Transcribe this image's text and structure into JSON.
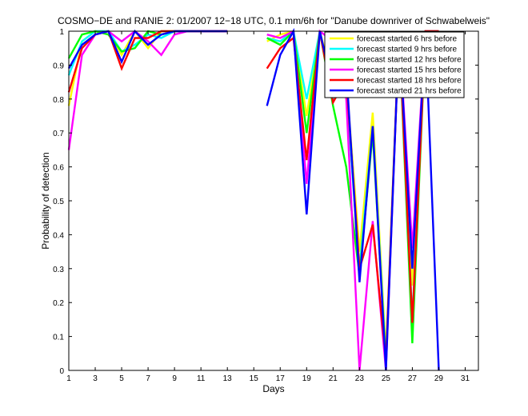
{
  "chart_data": {
    "type": "line",
    "title": "COSMO−DE and RANIE 2: 01/2007 12−18 UTC, 0.1 mm/6h for \"Danube downriver of Schwabelweis\"",
    "xlabel": "Days",
    "ylabel": "Probability of detection",
    "xlim": [
      1,
      32
    ],
    "ylim": [
      0,
      1
    ],
    "xticks": [
      1,
      3,
      5,
      7,
      9,
      11,
      13,
      15,
      17,
      19,
      21,
      23,
      25,
      27,
      29,
      31
    ],
    "yticks": [
      0,
      0.1,
      0.2,
      0.3,
      0.4,
      0.5,
      0.6,
      0.7,
      0.8,
      0.9,
      1
    ],
    "grid": false,
    "legend_position": "top-right",
    "series": [
      {
        "name": "forecast started 6 hrs before",
        "color": "#ffff00",
        "points": [
          [
            1,
            0.78
          ],
          [
            2,
            0.97
          ],
          [
            3,
            1.0
          ],
          [
            4,
            1.0
          ],
          [
            5,
            0.93
          ],
          [
            6,
            1.0
          ],
          [
            7,
            0.95
          ],
          [
            8,
            1.0
          ],
          [
            9,
            1.0
          ],
          [
            10,
            1.0
          ],
          [
            11,
            1.0
          ],
          [
            12,
            1.0
          ],
          [
            13,
            1.0
          ],
          null,
          [
            16,
            0.97
          ],
          [
            17,
            0.99
          ],
          [
            18,
            1.0
          ],
          [
            19,
            0.75
          ],
          [
            20,
            1.0
          ],
          [
            21,
            0.85
          ],
          [
            22,
            0.86
          ],
          [
            23,
            0.35
          ],
          [
            24,
            0.76
          ],
          [
            25,
            0.05
          ],
          [
            26,
            1.0
          ],
          [
            27,
            0.25
          ],
          [
            28,
            1.0
          ],
          [
            29,
            1.0
          ]
        ]
      },
      {
        "name": "forecast started 9 hrs before",
        "color": "#00ffff",
        "points": [
          [
            1,
            0.87
          ],
          [
            2,
            0.97
          ],
          [
            3,
            1.0
          ],
          [
            4,
            1.0
          ],
          [
            5,
            0.94
          ],
          [
            6,
            0.96
          ],
          [
            7,
            0.99
          ],
          [
            8,
            0.98
          ],
          [
            9,
            1.0
          ],
          [
            10,
            1.0
          ],
          [
            11,
            1.0
          ],
          [
            12,
            1.0
          ],
          [
            13,
            1.0
          ],
          null,
          [
            16,
            0.98
          ],
          [
            17,
            0.97
          ],
          [
            18,
            1.0
          ],
          [
            19,
            0.8
          ],
          [
            20,
            1.0
          ],
          [
            21,
            0.8
          ],
          [
            22,
            0.82
          ],
          [
            23,
            0.3
          ],
          [
            24,
            0.72
          ],
          [
            25,
            0.03
          ],
          [
            26,
            1.0
          ],
          [
            27,
            0.15
          ],
          [
            28,
            1.0
          ],
          [
            29,
            1.0
          ]
        ]
      },
      {
        "name": "forecast started 12 hrs before",
        "color": "#00ff00",
        "points": [
          [
            1,
            0.92
          ],
          [
            2,
            0.99
          ],
          [
            3,
            1.0
          ],
          [
            4,
            0.99
          ],
          [
            5,
            0.94
          ],
          [
            6,
            0.95
          ],
          [
            7,
            1.0
          ],
          [
            8,
            0.99
          ],
          [
            9,
            1.0
          ],
          [
            10,
            1.0
          ],
          [
            11,
            1.0
          ],
          [
            12,
            1.0
          ],
          [
            13,
            1.0
          ],
          null,
          [
            16,
            0.98
          ],
          [
            17,
            0.96
          ],
          [
            18,
            1.0
          ],
          [
            19,
            0.7
          ],
          [
            20,
            1.0
          ],
          [
            21,
            0.78
          ],
          [
            22,
            0.6
          ],
          [
            23,
            0.28
          ],
          [
            24,
            0.7
          ],
          [
            25,
            0.02
          ],
          [
            26,
            1.0
          ],
          [
            27,
            0.08
          ],
          [
            28,
            1.0
          ],
          [
            29,
            1.0
          ]
        ]
      },
      {
        "name": "forecast started 15 hrs before",
        "color": "#ff00ff",
        "points": [
          [
            1,
            0.65
          ],
          [
            2,
            0.93
          ],
          [
            3,
            0.99
          ],
          [
            4,
            1.0
          ],
          [
            5,
            0.97
          ],
          [
            6,
            1.0
          ],
          [
            7,
            0.97
          ],
          [
            8,
            0.93
          ],
          [
            9,
            0.99
          ],
          [
            10,
            1.0
          ],
          [
            11,
            1.0
          ],
          [
            12,
            1.0
          ],
          [
            13,
            1.0
          ],
          null,
          [
            16,
            0.99
          ],
          [
            17,
            0.98
          ],
          [
            18,
            1.0
          ],
          [
            19,
            0.55
          ],
          [
            20,
            1.0
          ],
          [
            21,
            0.97
          ],
          [
            22,
            0.8
          ],
          [
            23,
            0.0
          ],
          [
            24,
            0.44
          ],
          [
            25,
            0.0
          ],
          [
            26,
            1.0
          ],
          [
            27,
            0.36
          ],
          [
            28,
            1.0
          ],
          [
            29,
            1.0
          ]
        ]
      },
      {
        "name": "forecast started 18 hrs before",
        "color": "#ff0000",
        "points": [
          [
            1,
            0.82
          ],
          [
            2,
            0.95
          ],
          [
            3,
            0.99
          ],
          [
            4,
            1.0
          ],
          [
            5,
            0.89
          ],
          [
            6,
            0.98
          ],
          [
            7,
            0.98
          ],
          [
            8,
            1.0
          ],
          [
            9,
            1.0
          ],
          [
            10,
            1.0
          ],
          [
            11,
            1.0
          ],
          [
            12,
            1.0
          ],
          [
            13,
            1.0
          ],
          null,
          [
            16,
            0.89
          ],
          [
            17,
            0.95
          ],
          [
            18,
            0.98
          ],
          [
            19,
            0.62
          ],
          [
            20,
            1.0
          ],
          [
            21,
            0.79
          ],
          [
            22,
            0.86
          ],
          [
            23,
            0.3
          ],
          [
            24,
            0.43
          ],
          [
            25,
            0.03
          ],
          [
            26,
            1.0
          ],
          [
            27,
            0.14
          ],
          [
            28,
            1.0
          ],
          [
            29,
            1.0
          ]
        ]
      },
      {
        "name": "forecast started 21 hrs before",
        "color": "#0000ff",
        "points": [
          [
            1,
            0.89
          ],
          [
            2,
            0.96
          ],
          [
            3,
            0.99
          ],
          [
            4,
            1.0
          ],
          [
            5,
            0.91
          ],
          [
            6,
            1.0
          ],
          [
            7,
            0.96
          ],
          [
            8,
            0.99
          ],
          [
            9,
            1.0
          ],
          [
            10,
            1.0
          ],
          [
            11,
            1.0
          ],
          [
            12,
            1.0
          ],
          [
            13,
            1.0
          ],
          null,
          [
            16,
            0.78
          ],
          [
            17,
            0.93
          ],
          [
            18,
            1.0
          ],
          [
            19,
            0.46
          ],
          [
            20,
            1.0
          ],
          [
            21,
            0.83
          ],
          [
            22,
            0.89
          ],
          [
            23,
            0.26
          ],
          [
            24,
            0.72
          ],
          [
            25,
            0.0
          ],
          [
            26,
            1.0
          ],
          [
            27,
            0.3
          ],
          [
            28,
            1.0
          ],
          [
            29,
            0.0
          ]
        ]
      }
    ]
  }
}
